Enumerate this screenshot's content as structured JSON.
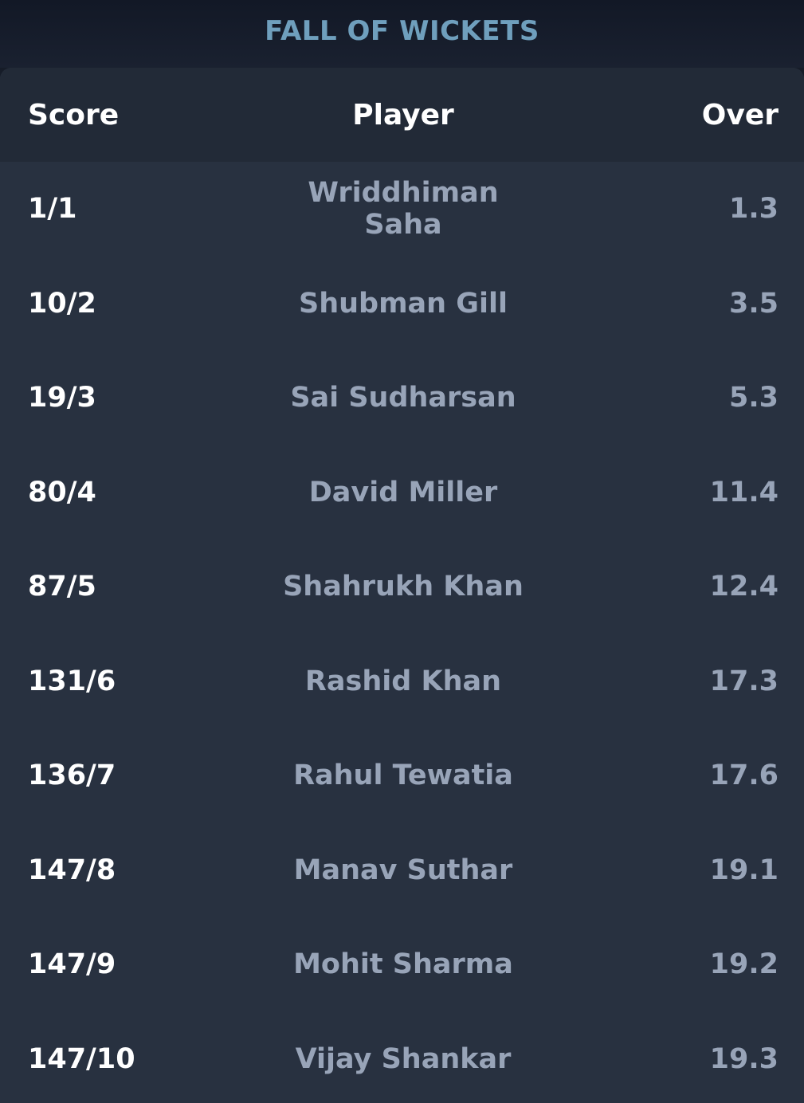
{
  "title": "FALL OF WICKETS",
  "columns": {
    "score": "Score",
    "player": "Player",
    "over": "Over"
  },
  "rows": [
    {
      "score": "1/1",
      "player": "Wriddhiman Saha",
      "over": "1.3"
    },
    {
      "score": "10/2",
      "player": "Shubman Gill",
      "over": "3.5"
    },
    {
      "score": "19/3",
      "player": "Sai Sudharsan",
      "over": "5.3"
    },
    {
      "score": "80/4",
      "player": "David Miller",
      "over": "11.4"
    },
    {
      "score": "87/5",
      "player": "Shahrukh Khan",
      "over": "12.4"
    },
    {
      "score": "131/6",
      "player": "Rashid Khan",
      "over": "17.3"
    },
    {
      "score": "136/7",
      "player": "Rahul Tewatia",
      "over": "17.6"
    },
    {
      "score": "147/8",
      "player": "Manav Suthar",
      "over": "19.1"
    },
    {
      "score": "147/9",
      "player": "Mohit Sharma",
      "over": "19.2"
    },
    {
      "score": "147/10",
      "player": "Vijay Shankar",
      "over": "19.3"
    }
  ],
  "colors": {
    "title": "#6f9fbd",
    "background": "#161c28",
    "card": "#283140",
    "header_row": "#222a37",
    "score_text": "#ffffff",
    "muted_text": "#98a4b8"
  }
}
